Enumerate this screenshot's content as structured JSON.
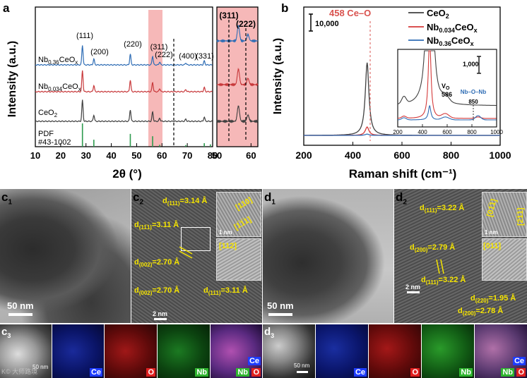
{
  "panel_a": {
    "label": "a",
    "ylabel": "Intensity (a.u.)",
    "xlabel": "2θ (°)",
    "xticks": [
      "10",
      "20",
      "30",
      "40",
      "50",
      "60",
      "70",
      "80"
    ],
    "inset_xticks": [
      "50",
      "60"
    ],
    "peaks": [
      "(111)",
      "(200)",
      "(220)",
      "(311)",
      "(222)",
      "(400)",
      "(331)"
    ],
    "inset_peaks": [
      "(311)",
      "(222)"
    ],
    "samples": [
      {
        "name": "Nb",
        "sub": "0.36",
        "rest": "CeO",
        "sub2": "x",
        "color": "#2f6db5"
      },
      {
        "name": "Nb",
        "sub": "0.034",
        "rest": "CeO",
        "sub2": "x",
        "color": "#c8393b"
      },
      {
        "name": "CeO",
        "sub": "",
        "rest": "",
        "sub2": "2",
        "color": "#404040"
      }
    ],
    "pdf_label_1": "PDF",
    "pdf_label_2": "#43-1002",
    "pdf_color": "#2e9b4f",
    "highlight_color": "#f6b8b8"
  },
  "panel_b": {
    "label": "b",
    "ylabel": "Intensity (a.u.)",
    "xlabel": "Raman shift (cm⁻¹)",
    "xticks": [
      "200",
      "400",
      "600",
      "800",
      "1000"
    ],
    "scale_main": "10,000",
    "scale_inset": "1,000",
    "peak_label": "458  Ce–O",
    "vo_label": "V",
    "vo_sub": "O",
    "vo_value": "586",
    "nb_label": "Nb–O–Nb",
    "nb_value": "850",
    "inset_xticks": [
      "200",
      "400",
      "600",
      "800",
      "1000"
    ],
    "legend": [
      {
        "name": "CeO",
        "sub": "2",
        "color": "#404040"
      },
      {
        "name": "Nb",
        "sub": "0.034",
        "rest": "CeO",
        "sub2": "x",
        "color": "#d43a3a"
      },
      {
        "name": "Nb",
        "sub": "0.36",
        "rest": "CeO",
        "sub2": "x",
        "color": "#2f6db5"
      }
    ],
    "peak_color": "#d9534f"
  },
  "chart_data": [
    {
      "type": "line",
      "title": "XRD patterns",
      "xlabel": "2θ (°)",
      "ylabel": "Intensity (a.u.)",
      "xlim": [
        10,
        80
      ],
      "peak_positions": [
        28.6,
        33.1,
        47.5,
        56.3,
        59.1,
        69.4,
        76.7
      ],
      "peak_labels": [
        "(111)",
        "(200)",
        "(220)",
        "(311)",
        "(222)",
        "(400)",
        "(331)"
      ],
      "series": [
        {
          "name": "Nb0.36CeOx",
          "relative_heights": [
            1.0,
            0.3,
            0.55,
            0.45,
            0.15,
            0.1,
            0.2
          ]
        },
        {
          "name": "Nb0.034CeOx",
          "relative_heights": [
            1.0,
            0.3,
            0.55,
            0.45,
            0.15,
            0.1,
            0.2
          ]
        },
        {
          "name": "CeO2",
          "relative_heights": [
            1.0,
            0.3,
            0.55,
            0.45,
            0.15,
            0.1,
            0.2
          ]
        }
      ],
      "reference": {
        "name": "PDF #43-1002",
        "positions": [
          28.6,
          33.1,
          47.5,
          56.3,
          59.1,
          69.4,
          76.7,
          79.1
        ],
        "relative_heights": [
          1.0,
          0.3,
          0.55,
          0.45,
          0.08,
          0.07,
          0.15,
          0.1
        ]
      },
      "inset": {
        "xlim": [
          50,
          62
        ],
        "xticks": [
          50,
          60
        ],
        "peaks": [
          {
            "label": "(311)",
            "x": 56.3
          },
          {
            "label": "(222)",
            "x": 59.1
          }
        ]
      }
    },
    {
      "type": "line",
      "title": "Raman spectra",
      "xlabel": "Raman shift (cm-1)",
      "ylabel": "Intensity (a.u.)",
      "xlim": [
        200,
        1000
      ],
      "scale_bar": 10000,
      "series": [
        {
          "name": "CeO2",
          "peak_x": 458,
          "peak_height": 43000
        },
        {
          "name": "Nb0.034CeOx",
          "peak_x": 458,
          "peak_height": 5000
        },
        {
          "name": "Nb0.36CeOx",
          "peak_x": 458,
          "peak_height": 800
        }
      ],
      "annotations": [
        {
          "label": "458 Ce–O",
          "x": 458
        }
      ],
      "inset": {
        "xlim": [
          200,
          1000
        ],
        "scale_bar": 1000,
        "bands": [
          {
            "label": "VO",
            "x": 586
          },
          {
            "label": "Nb–O–Nb",
            "x": 850
          }
        ]
      }
    }
  ],
  "panel_c": {
    "label": "c",
    "sub1": "1",
    "sub2": "2",
    "sub3": "3",
    "scale_c1": "50 nm",
    "scale_c2": "2 nm",
    "scale_c3": "50 nm",
    "inset_scale": "1 nm",
    "zone_axis": "[112]",
    "dir1": "[110]",
    "dir2": "[1̅1̅1]",
    "d1_label": "d",
    "d1_sub": "(111)",
    "d1_val": "=3.14 Å",
    "d2_label": "d",
    "d2_sub": "(11̅1)",
    "d2_val": "=3.11 Å",
    "d3_label": "d",
    "d3_sub": "(002)",
    "d3_val": "=2.70 Å",
    "d4_label": "d",
    "d4_sub": "(002)",
    "d4_val": "=2.70 Å",
    "d5_label": "d",
    "d5_sub": "(111)",
    "d5_val": "=3.11 Å",
    "maps": [
      "Ce",
      "O",
      "Nb",
      "Nb",
      "O",
      "Ce"
    ],
    "watermark": "K© 大师路境"
  },
  "panel_d": {
    "label": "d",
    "sub1": "1",
    "sub2": "2",
    "sub3": "3",
    "scale_d1": "50 nm",
    "scale_d2": "2 nm",
    "scale_d3": "50 nm",
    "inset_scale": "1 nm",
    "zone_axis": "[011]",
    "dir1": "[01̅1]",
    "dir2": "[2̅1̅1]",
    "d1_label": "d",
    "d1_sub": "(111)",
    "d1_val": "=3.22 Å",
    "d2_label": "d",
    "d2_sub": "(200)",
    "d2_val": "=2.79 Å",
    "d3_label": "d",
    "d3_sub": "(111)",
    "d3_val": "=3.22 Å",
    "d4_label": "d",
    "d4_sub": "(220)",
    "d4_val": "=1.95 Å",
    "d5_label": "d",
    "d5_sub": "(200)",
    "d5_val": "=2.78 Å",
    "maps": [
      "Ce",
      "O",
      "Nb",
      "Nb",
      "O",
      "Ce"
    ]
  }
}
